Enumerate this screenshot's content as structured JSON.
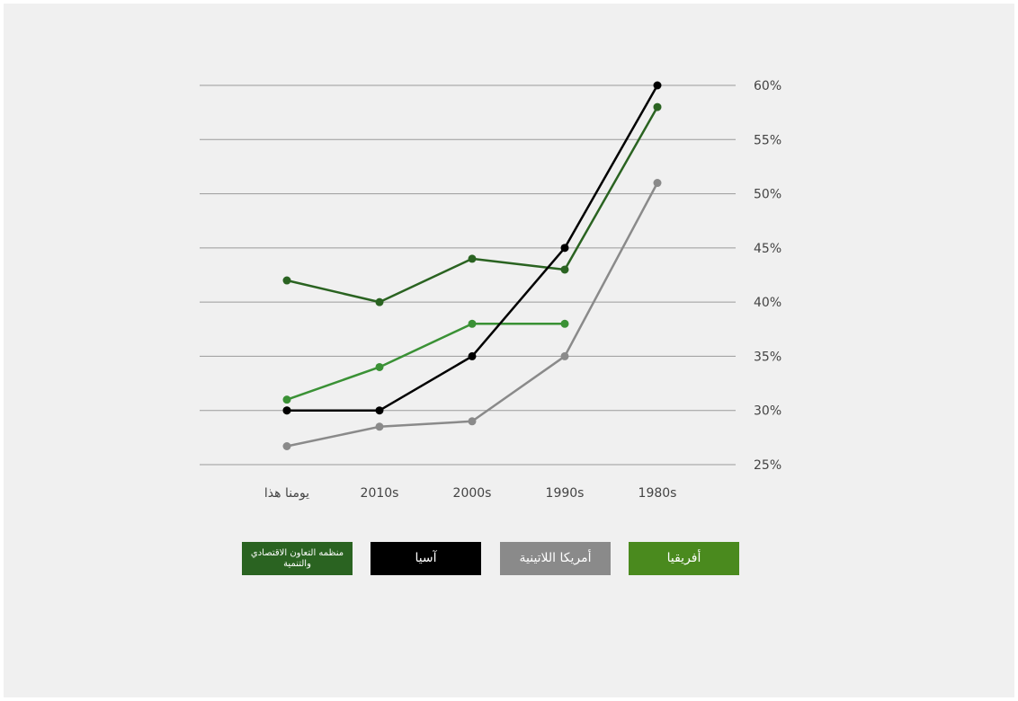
{
  "chart_data": {
    "type": "line",
    "categories": [
      "يومنا هذا",
      "2010s",
      "2000s",
      "1990s",
      "1980s"
    ],
    "y_ticks": [
      "60%",
      "55%",
      "50%",
      "45%",
      "40%",
      "35%",
      "30%",
      "25%"
    ],
    "y_tick_values": [
      60,
      55,
      50,
      45,
      40,
      35,
      30,
      25
    ],
    "ylim": [
      25,
      60
    ],
    "y_axis_side": "right",
    "grid": true,
    "legend_position": "bottom",
    "series": [
      {
        "name": "أفريقيا",
        "color": "#3a9135",
        "values": [
          31,
          34,
          38,
          38,
          null
        ]
      },
      {
        "name": "أمريكا اللاتينية",
        "color": "#8a8a8a",
        "values": [
          26.7,
          28.5,
          29,
          35,
          51
        ]
      },
      {
        "name": "آسيا",
        "color": "#000000",
        "values": [
          30,
          30,
          35,
          45,
          60
        ]
      },
      {
        "name": "منظمه التعاون الاقتصادي والتنمية",
        "color": "#2a6321",
        "values": [
          42,
          40,
          44,
          43,
          58
        ]
      },
      {
        "name": "",
        "color": "#2a6321",
        "values": [
          30,
          null,
          null,
          null,
          null
        ]
      }
    ]
  },
  "legend": [
    {
      "label": "أفريقيا",
      "color": "#4a8a1e"
    },
    {
      "label": "أمريكا اللاتينية",
      "color": "#8a8a8a"
    },
    {
      "label": "آسيا",
      "color": "#000000"
    },
    {
      "label": "منظمه التعاون الاقتصادي والتنمية",
      "color": "#2a6321"
    }
  ]
}
